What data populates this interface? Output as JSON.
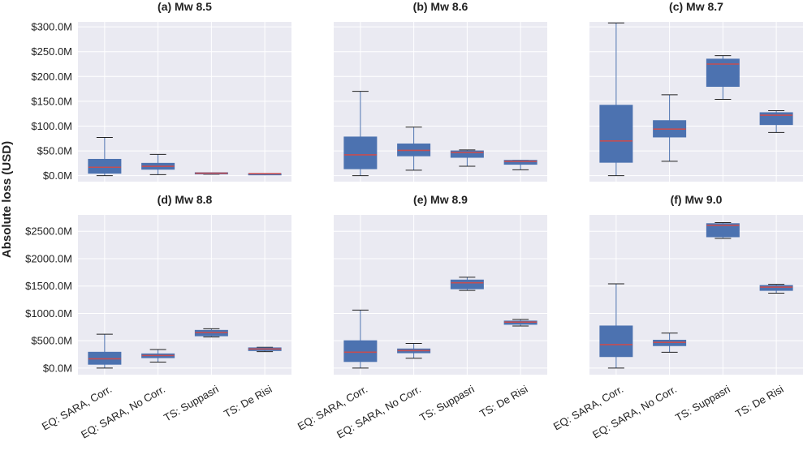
{
  "ylabel": "Absolute loss (USD)",
  "colors": {
    "box": "#4c72b0",
    "median": "#c44e52",
    "whisker": "#4c72b0",
    "cap": "#222222",
    "panel_bg": "#eaeaf2",
    "grid": "#ffffff"
  },
  "categories": [
    "EQ: SARA, Corr.",
    "EQ: SARA, No Corr.",
    "TS: Suppasri",
    "TS: De Risi"
  ],
  "chart_data": [
    {
      "type": "box",
      "title": "(a) Mw 8.5",
      "ylim": [
        -12,
        310
      ],
      "yticks": [
        0,
        50,
        100,
        150,
        200,
        250,
        300
      ],
      "ytick_labels": [
        "$0.0M",
        "$50.0M",
        "$100.0M",
        "$150.0M",
        "$200.0M",
        "$250.0M",
        "$300.0M"
      ],
      "boxes": [
        {
          "category": "EQ: SARA, Corr.",
          "min": 0,
          "q1": 5,
          "median": 17,
          "q3": 33,
          "max": 77
        },
        {
          "category": "EQ: SARA, No Corr.",
          "min": 2,
          "q1": 13,
          "median": 19,
          "q3": 25,
          "max": 43
        },
        {
          "category": "TS: Suppasri",
          "min": 3,
          "q1": 4,
          "median": 5,
          "q3": 6,
          "max": 6
        },
        {
          "category": "TS: De Risi",
          "min": 3,
          "q1": 3,
          "median": 4,
          "q3": 4,
          "max": 4
        }
      ]
    },
    {
      "type": "box",
      "title": "(b) Mw 8.6",
      "ylim": [
        -12,
        310
      ],
      "yticks": [
        0,
        50,
        100,
        150,
        200,
        250,
        300
      ],
      "ytick_labels": [],
      "boxes": [
        {
          "category": "EQ: SARA, Corr.",
          "min": 0,
          "q1": 14,
          "median": 42,
          "q3": 78,
          "max": 170
        },
        {
          "category": "EQ: SARA, No Corr.",
          "min": 11,
          "q1": 40,
          "median": 51,
          "q3": 64,
          "max": 98
        },
        {
          "category": "TS: Suppasri",
          "min": 19,
          "q1": 37,
          "median": 47,
          "q3": 50,
          "max": 52
        },
        {
          "category": "TS: De Risi",
          "min": 12,
          "q1": 23,
          "median": 29,
          "q3": 31,
          "max": 31
        }
      ]
    },
    {
      "type": "box",
      "title": "(c) Mw 8.7",
      "ylim": [
        -12,
        310
      ],
      "yticks": [
        0,
        50,
        100,
        150,
        200,
        250,
        300
      ],
      "ytick_labels": [],
      "boxes": [
        {
          "category": "EQ: SARA, Corr.",
          "min": 0,
          "q1": 27,
          "median": 70,
          "q3": 142,
          "max": 308
        },
        {
          "category": "EQ: SARA, No Corr.",
          "min": 29,
          "q1": 78,
          "median": 94,
          "q3": 111,
          "max": 163
        },
        {
          "category": "TS: Suppasri",
          "min": 154,
          "q1": 180,
          "median": 225,
          "q3": 235,
          "max": 242
        },
        {
          "category": "TS: De Risi",
          "min": 87,
          "q1": 103,
          "median": 122,
          "q3": 127,
          "max": 131
        }
      ]
    },
    {
      "type": "box",
      "title": "(d) Mw 8.8",
      "ylim": [
        -120,
        2800
      ],
      "yticks": [
        0,
        500,
        1000,
        1500,
        2000,
        2500
      ],
      "ytick_labels": [
        "$0.0M",
        "$500.0M",
        "$1000.0M",
        "$1500.0M",
        "$2000.0M",
        "$2500.0M"
      ],
      "boxes": [
        {
          "category": "EQ: SARA, Corr.",
          "min": 0,
          "q1": 70,
          "median": 170,
          "q3": 290,
          "max": 620
        },
        {
          "category": "EQ: SARA, No Corr.",
          "min": 110,
          "q1": 190,
          "median": 230,
          "q3": 260,
          "max": 340
        },
        {
          "category": "TS: Suppasri",
          "min": 570,
          "q1": 590,
          "median": 650,
          "q3": 690,
          "max": 720
        },
        {
          "category": "TS: De Risi",
          "min": 300,
          "q1": 320,
          "median": 350,
          "q3": 370,
          "max": 380
        }
      ]
    },
    {
      "type": "box",
      "title": "(e) Mw 8.9",
      "ylim": [
        -120,
        2800
      ],
      "yticks": [
        0,
        500,
        1000,
        1500,
        2000,
        2500
      ],
      "ytick_labels": [],
      "boxes": [
        {
          "category": "EQ: SARA, Corr.",
          "min": 0,
          "q1": 120,
          "median": 290,
          "q3": 500,
          "max": 1060
        },
        {
          "category": "EQ: SARA, No Corr.",
          "min": 180,
          "q1": 280,
          "median": 320,
          "q3": 350,
          "max": 450
        },
        {
          "category": "TS: Suppasri",
          "min": 1420,
          "q1": 1450,
          "median": 1560,
          "q3": 1610,
          "max": 1660
        },
        {
          "category": "TS: De Risi",
          "min": 770,
          "q1": 800,
          "median": 840,
          "q3": 860,
          "max": 890
        }
      ]
    },
    {
      "type": "box",
      "title": "(f) Mw 9.0",
      "ylim": [
        -120,
        2800
      ],
      "yticks": [
        0,
        500,
        1000,
        1500,
        2000,
        2500
      ],
      "ytick_labels": [],
      "boxes": [
        {
          "category": "EQ: SARA, Corr.",
          "min": 0,
          "q1": 210,
          "median": 430,
          "q3": 770,
          "max": 1540
        },
        {
          "category": "EQ: SARA, No Corr.",
          "min": 290,
          "q1": 410,
          "median": 470,
          "q3": 510,
          "max": 640
        },
        {
          "category": "TS: Suppasri",
          "min": 2370,
          "q1": 2400,
          "median": 2610,
          "q3": 2640,
          "max": 2660
        },
        {
          "category": "TS: De Risi",
          "min": 1370,
          "q1": 1420,
          "median": 1480,
          "q3": 1510,
          "max": 1530
        }
      ]
    }
  ]
}
